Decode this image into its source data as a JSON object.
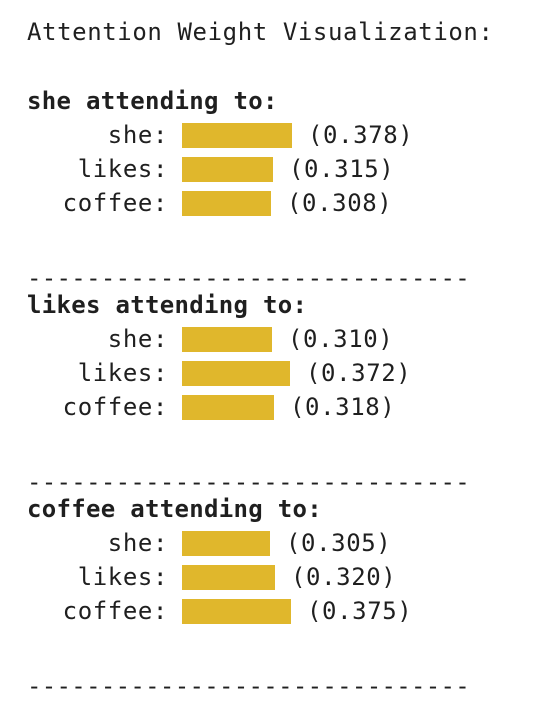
{
  "title": "Attention Weight Visualization:",
  "accent_color": "#e0b72c",
  "divider": "------------------------------",
  "sections": [
    {
      "heading": "she attending to:",
      "rows": [
        {
          "label": "she:",
          "weight": 0.378,
          "value_text": "(0.378)"
        },
        {
          "label": "likes:",
          "weight": 0.315,
          "value_text": "(0.315)"
        },
        {
          "label": "coffee:",
          "weight": 0.308,
          "value_text": "(0.308)"
        }
      ]
    },
    {
      "heading": "likes attending to:",
      "rows": [
        {
          "label": "she:",
          "weight": 0.31,
          "value_text": "(0.310)"
        },
        {
          "label": "likes:",
          "weight": 0.372,
          "value_text": "(0.372)"
        },
        {
          "label": "coffee:",
          "weight": 0.318,
          "value_text": "(0.318)"
        }
      ]
    },
    {
      "heading": "coffee attending to:",
      "rows": [
        {
          "label": "she:",
          "weight": 0.305,
          "value_text": "(0.305)"
        },
        {
          "label": "likes:",
          "weight": 0.32,
          "value_text": "(0.320)"
        },
        {
          "label": "coffee:",
          "weight": 0.375,
          "value_text": "(0.375)"
        }
      ]
    }
  ]
}
